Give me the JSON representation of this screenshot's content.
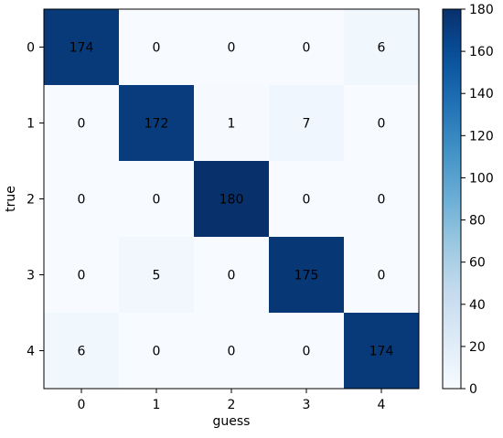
{
  "chart_data": {
    "type": "heatmap",
    "title": "",
    "xlabel": "guess",
    "ylabel": "true",
    "x_categories": [
      "0",
      "1",
      "2",
      "3",
      "4"
    ],
    "y_categories": [
      "0",
      "1",
      "2",
      "3",
      "4"
    ],
    "values": [
      [
        174,
        0,
        0,
        0,
        6
      ],
      [
        0,
        172,
        1,
        7,
        0
      ],
      [
        0,
        0,
        180,
        0,
        0
      ],
      [
        0,
        5,
        0,
        175,
        0
      ],
      [
        6,
        0,
        0,
        0,
        174
      ]
    ],
    "colormap": "Blues",
    "vmin": 0,
    "vmax": 180,
    "colorbar_ticks": [
      "0",
      "20",
      "40",
      "60",
      "80",
      "100",
      "120",
      "140",
      "160",
      "180"
    ],
    "grid": false
  }
}
